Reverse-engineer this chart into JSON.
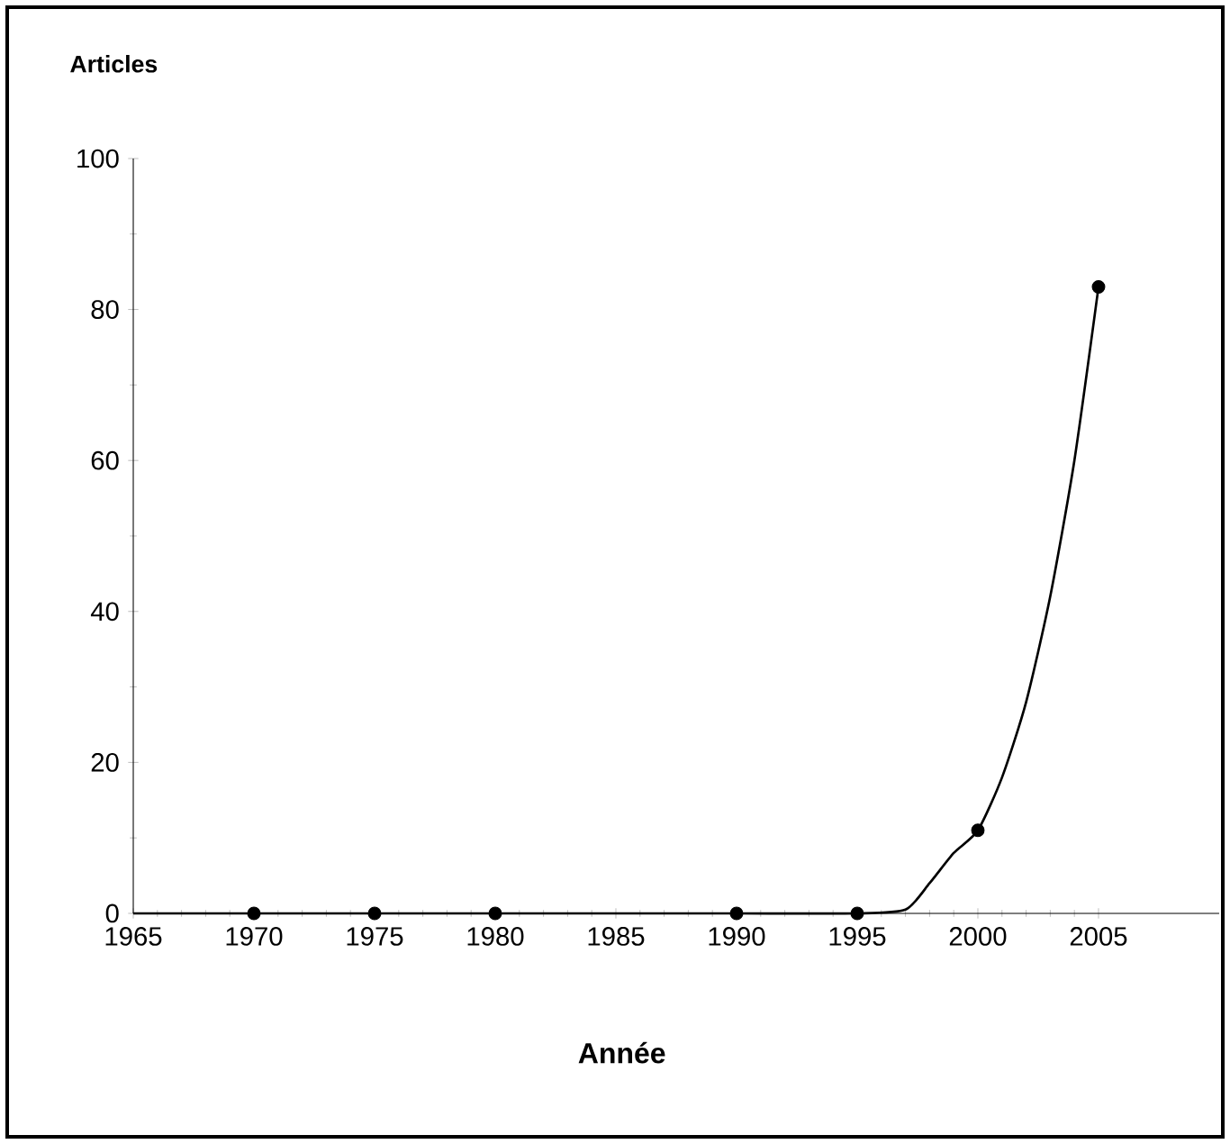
{
  "chart_data": {
    "type": "line",
    "ylabel": "Articles",
    "xlabel": "Année",
    "series": [
      {
        "color": "#000000",
        "marker": "none",
        "x": [
          1965,
          1970,
          1975,
          1980,
          1985,
          1990,
          1995,
          1997,
          1998,
          1999,
          2000,
          2001,
          2002,
          2003,
          2004,
          2005
        ],
        "values": [
          0,
          0,
          0,
          0,
          0,
          0,
          0,
          0.5,
          4,
          8,
          11,
          18,
          28,
          42,
          60,
          83
        ]
      },
      {
        "type": "scatter",
        "color": "#000000",
        "marker": "circle",
        "x": [
          1970,
          1975,
          1980,
          1990,
          1995,
          2000,
          2005
        ],
        "values": [
          0,
          0,
          0,
          0,
          0,
          11,
          83
        ]
      }
    ],
    "xlim": [
      1965,
      2010
    ],
    "ylim": [
      0,
      100
    ],
    "xticks": [
      1965,
      1970,
      1975,
      1980,
      1985,
      1990,
      1995,
      2000,
      2005
    ],
    "yticks": [
      0,
      20,
      40,
      60,
      80,
      100
    ],
    "grid": false
  }
}
